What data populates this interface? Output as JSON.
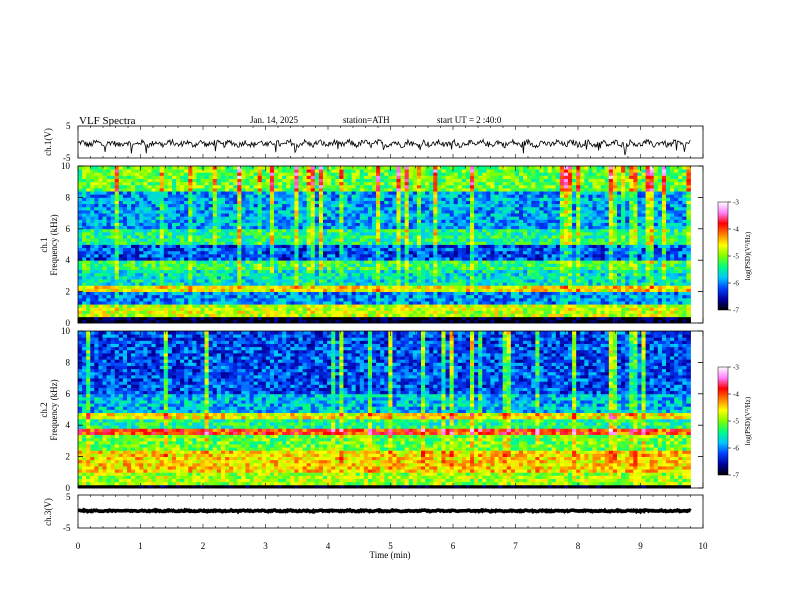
{
  "header": {
    "title": "VLF Spectra",
    "date": "Jan. 14, 2025",
    "station": "station=ATH",
    "start_time": "start UT =  2 :40:0"
  },
  "colorbar": {
    "label": "log(PSD)(V²/Hz)",
    "ticks": [
      -3,
      -4,
      -5,
      -6,
      -7
    ],
    "range": [
      -7,
      -3
    ],
    "colors": [
      "#000000",
      "#0000a0",
      "#0040ff",
      "#00c8ff",
      "#00ff80",
      "#80ff00",
      "#ffff00",
      "#ff8000",
      "#ff0000",
      "#ff80ff",
      "#ffffff"
    ]
  },
  "chart_data": [
    {
      "type": "line",
      "panel": "channel-1-waveform",
      "ylabel": "ch.1(V)",
      "ylim": [
        -5,
        5
      ],
      "y_ticks": [
        5,
        -5
      ],
      "xlim": [
        0,
        10
      ],
      "data_end": 9.8,
      "approx_mean": -0.5,
      "approx_amplitude": 1.5,
      "line_color": "#000000"
    },
    {
      "type": "heatmap",
      "panel": "channel-1-spectrogram",
      "ylabel": "ch.1\nFrequency (kHz)",
      "ylim": [
        0,
        10
      ],
      "y_ticks": [
        0,
        2,
        4,
        6,
        8,
        10
      ],
      "xlim": [
        0,
        10
      ],
      "data_end": 9.8,
      "color_scale": "log(PSD)(V²/Hz)",
      "zlim": [
        -7,
        -3
      ],
      "bands": [
        {
          "freq_range": [
            0,
            0.5
          ],
          "level": -7.0
        },
        {
          "freq_range": [
            0.5,
            1.2
          ],
          "level": -4.8
        },
        {
          "freq_range": [
            1.2,
            2.0
          ],
          "level": -6.0
        },
        {
          "freq_range": [
            2.0,
            2.5
          ],
          "level": -4.6
        },
        {
          "freq_range": [
            2.5,
            3.5
          ],
          "level": -5.6
        },
        {
          "freq_range": [
            3.5,
            4.0
          ],
          "level": -5.3
        },
        {
          "freq_range": [
            4.0,
            5.0
          ],
          "level": -6.2
        },
        {
          "freq_range": [
            5.0,
            6.0
          ],
          "level": -5.4
        },
        {
          "freq_range": [
            6.0,
            8.5
          ],
          "level": -5.9
        },
        {
          "freq_range": [
            8.5,
            10.0
          ],
          "level": -5.1
        }
      ]
    },
    {
      "type": "heatmap",
      "panel": "channel-2-spectrogram",
      "ylabel": "ch.2\nFrequency (kHz)",
      "ylim": [
        0,
        10
      ],
      "y_ticks": [
        0,
        2,
        4,
        6,
        8,
        10
      ],
      "xlim": [
        0,
        10
      ],
      "data_end": 9.8,
      "color_scale": "log(PSD)(V²/Hz)",
      "zlim": [
        -7,
        -3
      ],
      "bands": [
        {
          "freq_range": [
            0,
            0.2
          ],
          "level": -7.0
        },
        {
          "freq_range": [
            0.2,
            1.0
          ],
          "level": -4.9
        },
        {
          "freq_range": [
            1.0,
            2.5
          ],
          "level": -4.5
        },
        {
          "freq_range": [
            2.5,
            3.5
          ],
          "level": -5.1
        },
        {
          "freq_range": [
            3.5,
            3.8
          ],
          "level": -4.0
        },
        {
          "freq_range": [
            3.8,
            4.5
          ],
          "level": -5.4
        },
        {
          "freq_range": [
            4.5,
            4.8
          ],
          "level": -4.6
        },
        {
          "freq_range": [
            4.8,
            6.0
          ],
          "level": -5.8
        },
        {
          "freq_range": [
            6.0,
            10.0
          ],
          "level": -6.2
        }
      ]
    },
    {
      "type": "line",
      "panel": "channel-3-waveform",
      "ylabel": "ch.3(V)",
      "ylim": [
        -5,
        5
      ],
      "y_ticks": [
        5,
        -5
      ],
      "xlim": [
        0,
        10
      ],
      "data_end": 9.8,
      "approx_mean": 0.2,
      "approx_amplitude": 0.3,
      "line_color": "#000000"
    }
  ],
  "x_axis": {
    "label": "Time (min)",
    "ticks": [
      0,
      1,
      2,
      3,
      4,
      5,
      6,
      7,
      8,
      9,
      10
    ],
    "range": [
      0,
      10
    ]
  }
}
